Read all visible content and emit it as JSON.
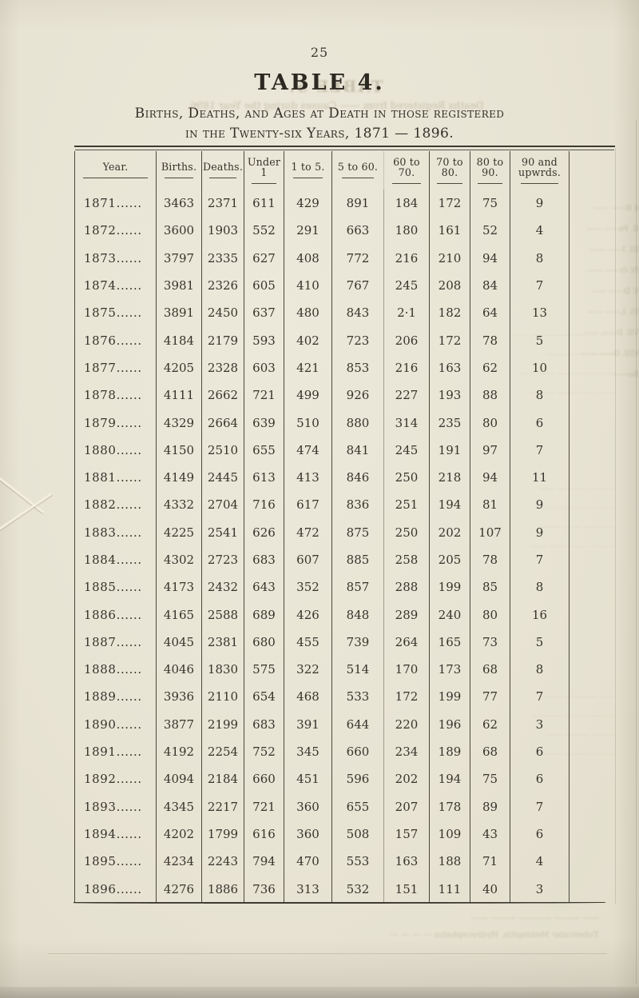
{
  "page_number": "25",
  "heading": "TABLE 4.",
  "title": {
    "line1": "Births, Deaths, and Ages at Death in those registered",
    "line2": "in the Twenty-six Years, 1871 — 1896."
  },
  "table": {
    "columns": [
      "Year.",
      "Births.",
      "Deaths.",
      "Under 1",
      "1 to 5.",
      "5 to 60.",
      "60 to 70.",
      "70 to 80.",
      "80 to 90.",
      "90 and\nupwrds."
    ],
    "rows": [
      [
        "1871......",
        "3463",
        "2371",
        "611",
        "429",
        "891",
        "184",
        "172",
        "75",
        "9"
      ],
      [
        "1872......",
        "3600",
        "1903",
        "552",
        "291",
        "663",
        "180",
        "161",
        "52",
        "4"
      ],
      [
        "1873......",
        "3797",
        "2335",
        "627",
        "408",
        "772",
        "216",
        "210",
        "94",
        "8"
      ],
      [
        "1874......",
        "3981",
        "2326",
        "605",
        "410",
        "767",
        "245",
        "208",
        "84",
        "7"
      ],
      [
        "1875......",
        "3891",
        "2450",
        "637",
        "480",
        "843",
        "2·1",
        "182",
        "64",
        "13"
      ],
      [
        "1876......",
        "4184",
        "2179",
        "593",
        "402",
        "723",
        "206",
        "172",
        "78",
        "5"
      ],
      [
        "1877......",
        "4205",
        "2328",
        "603",
        "421",
        "853",
        "216",
        "163",
        "62",
        "10"
      ],
      [
        "1878......",
        "4111",
        "2662",
        "721",
        "499",
        "926",
        "227",
        "193",
        "88",
        "8"
      ],
      [
        "1879......",
        "4329",
        "2664",
        "639",
        "510",
        "880",
        "314",
        "235",
        "80",
        "6"
      ],
      [
        "1880......",
        "4150",
        "2510",
        "655",
        "474",
        "841",
        "245",
        "191",
        "97",
        "7"
      ],
      [
        "1881......",
        "4149",
        "2445",
        "613",
        "413",
        "846",
        "250",
        "218",
        "94",
        "11"
      ],
      [
        "1882......",
        "4332",
        "2704",
        "716",
        "617",
        "836",
        "251",
        "194",
        "81",
        "9"
      ],
      [
        "1883......",
        "4225",
        "2541",
        "626",
        "472",
        "875",
        "250",
        "202",
        "107",
        "9"
      ],
      [
        "1884......",
        "4302",
        "2723",
        "683",
        "607",
        "885",
        "258",
        "205",
        "78",
        "7"
      ],
      [
        "1885......",
        "4173",
        "2432",
        "643",
        "352",
        "857",
        "288",
        "199",
        "85",
        "8"
      ],
      [
        "1886......",
        "4165",
        "2588",
        "689",
        "426",
        "848",
        "289",
        "240",
        "80",
        "16"
      ],
      [
        "1887......",
        "4045",
        "2381",
        "680",
        "455",
        "739",
        "264",
        "165",
        "73",
        "5"
      ],
      [
        "1888......",
        "4046",
        "1830",
        "575",
        "322",
        "514",
        "170",
        "173",
        "68",
        "8"
      ],
      [
        "1889......",
        "3936",
        "2110",
        "654",
        "468",
        "533",
        "172",
        "199",
        "77",
        "7"
      ],
      [
        "1890......",
        "3877",
        "2199",
        "683",
        "391",
        "644",
        "220",
        "196",
        "62",
        "3"
      ],
      [
        "1891......",
        "4192",
        "2254",
        "752",
        "345",
        "660",
        "234",
        "189",
        "68",
        "6"
      ],
      [
        "1892......",
        "4094",
        "2184",
        "660",
        "451",
        "596",
        "202",
        "194",
        "75",
        "6"
      ],
      [
        "1893......",
        "4345",
        "2217",
        "721",
        "360",
        "655",
        "207",
        "178",
        "89",
        "7"
      ],
      [
        "1894......",
        "4202",
        "1799",
        "616",
        "360",
        "508",
        "157",
        "109",
        "43",
        "6"
      ],
      [
        "1895......",
        "4234",
        "2243",
        "794",
        "470",
        "553",
        "163",
        "188",
        "71",
        "4"
      ],
      [
        "1896......",
        "4276",
        "1886",
        "736",
        "313",
        "532",
        "151",
        "111",
        "40",
        "3"
      ]
    ]
  },
  "ghost": {
    "verso_heading": "TABLE 5.",
    "verso_subheading": "Deaths Registered from —— Causes during the Year 1896.",
    "margin_lines": [
      "4  R——  ——",
      "II.  Pa—— ——",
      "III.  I—— ——",
      "IV.  O—— ——",
      "V.  D—— ——",
      "VI.  L—— ——",
      "VII.  D—— ——",
      "VIII.  D—— ——",
      "Bo——"
    ],
    "bleed_block_1": [
      "—— ——— ————— ——",
      "——— —— ———",
      "———— ——— —— ——",
      "—— ————— ———"
    ],
    "bleed_block_2": [
      "——— ———— ——",
      "—— ——— ————",
      "———— —— ———",
      "——— ————— ——"
    ],
    "bleed_block_3": [
      "—— ———— ———",
      "———— —— ————",
      "——— ——— ——",
      "—— ———— ———"
    ],
    "bottom_lines": [
      "—— ——— ———— ——— ——",
      "Tubercular Meningitis, Hydrocephalus    — — — —"
    ]
  }
}
